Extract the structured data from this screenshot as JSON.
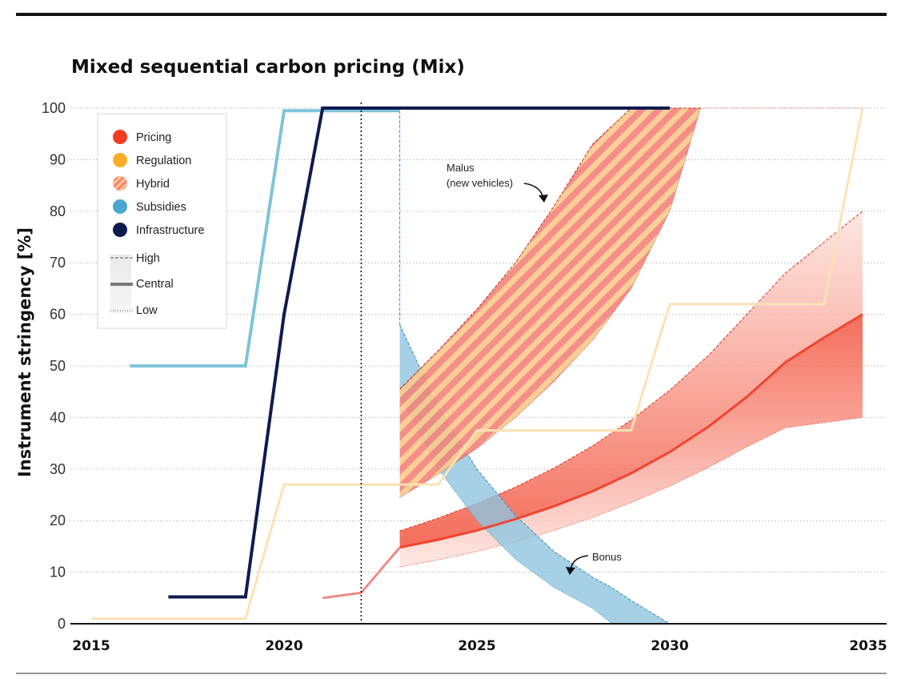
{
  "chart_data": {
    "type": "line",
    "title": "Mixed sequential carbon pricing (Mix)",
    "ylabel": "Instrument stringency [%]",
    "xlabel": "",
    "xlim": [
      2015,
      2035
    ],
    "ylim": [
      0,
      100
    ],
    "x_ticks": [
      "2015",
      "2020",
      "2025",
      "2030",
      "2035"
    ],
    "y_ticks": [
      "0",
      "10",
      "20",
      "30",
      "40",
      "50",
      "60",
      "70",
      "80",
      "90",
      "100"
    ],
    "grid": "horizontal dotted",
    "reference_line_x": 2022,
    "legend": {
      "placement": "top-left",
      "instruments": [
        {
          "label": "Pricing",
          "color": "#f23c1f",
          "swatch": "solid"
        },
        {
          "label": "Regulation",
          "color": "#fcae2a",
          "swatch": "solid"
        },
        {
          "label": "Hybrid",
          "color": "#f47e6a",
          "swatch": "striped"
        },
        {
          "label": "Subsidies",
          "color": "#4aa8cf",
          "swatch": "solid"
        },
        {
          "label": "Infrastructure",
          "color": "#0f1b4f",
          "swatch": "solid"
        }
      ],
      "scenarios": [
        {
          "label": "High",
          "style": "dashed"
        },
        {
          "label": "Central",
          "style": "thick"
        },
        {
          "label": "Low",
          "style": "dotted"
        }
      ]
    },
    "series": [
      {
        "instrument": "Subsidies",
        "kind": "line",
        "x": [
          2016,
          2019,
          2020,
          2023
        ],
        "y": [
          50,
          50,
          99.5,
          99.5
        ]
      },
      {
        "instrument": "Infrastructure",
        "kind": "line",
        "x": [
          2017,
          2019,
          2020,
          2021,
          2030
        ],
        "y": [
          5.2,
          5.2,
          60,
          100,
          100
        ]
      },
      {
        "instrument": "Regulation",
        "kind": "line",
        "x": [
          2015,
          2019,
          2020,
          2024,
          2025,
          2029,
          2030,
          2034,
          2035
        ],
        "y": [
          1,
          1,
          27,
          27,
          37.5,
          37.5,
          62,
          62,
          100
        ]
      },
      {
        "instrument": "Pricing",
        "kind": "history",
        "x": [
          2021,
          2022,
          2023
        ],
        "y": [
          5,
          6,
          14.8
        ]
      },
      {
        "instrument": "Pricing",
        "kind": "band",
        "x": [
          2023,
          2024,
          2025,
          2026,
          2027,
          2028,
          2029,
          2030,
          2031,
          2032,
          2033,
          2034,
          2035
        ],
        "central": [
          14.8,
          16.3,
          18.1,
          20.3,
          22.8,
          25.7,
          29.2,
          33.3,
          38.2,
          44.0,
          50.7,
          55.5,
          60
        ],
        "high": [
          18,
          20.5,
          23.3,
          26.5,
          30.2,
          34.5,
          39.5,
          45.3,
          52,
          60,
          68,
          74,
          80
        ],
        "low": [
          11,
          12.4,
          14,
          15.9,
          18.1,
          20.6,
          23.5,
          26.7,
          30.3,
          34.3,
          38.0,
          39.0,
          40
        ]
      },
      {
        "instrument": "Hybrid",
        "kind": "band",
        "annotation": "Malus\n(new vehicles)",
        "x": [
          2023,
          2024,
          2025,
          2026,
          2027,
          2027.5,
          2028,
          2029,
          2030,
          2030.8
        ],
        "high": [
          45.5,
          53,
          61,
          70,
          81,
          87,
          93,
          100,
          100,
          100
        ],
        "low": [
          24.5,
          29,
          34,
          40,
          47,
          51,
          55,
          65,
          80,
          100
        ]
      },
      {
        "instrument": "Subsidies",
        "kind": "band",
        "annotation": "Bonus",
        "x": [
          2023,
          2024,
          2025,
          2026,
          2027,
          2028,
          2028.5,
          2029,
          2030
        ],
        "high": [
          58,
          42,
          30,
          21,
          14,
          9,
          7,
          4.5,
          0
        ],
        "low": [
          44,
          30,
          20,
          12.5,
          7,
          3,
          0,
          0,
          0
        ]
      }
    ],
    "annotations": [
      "Malus",
      "(new vehicles)",
      "Bonus"
    ]
  }
}
